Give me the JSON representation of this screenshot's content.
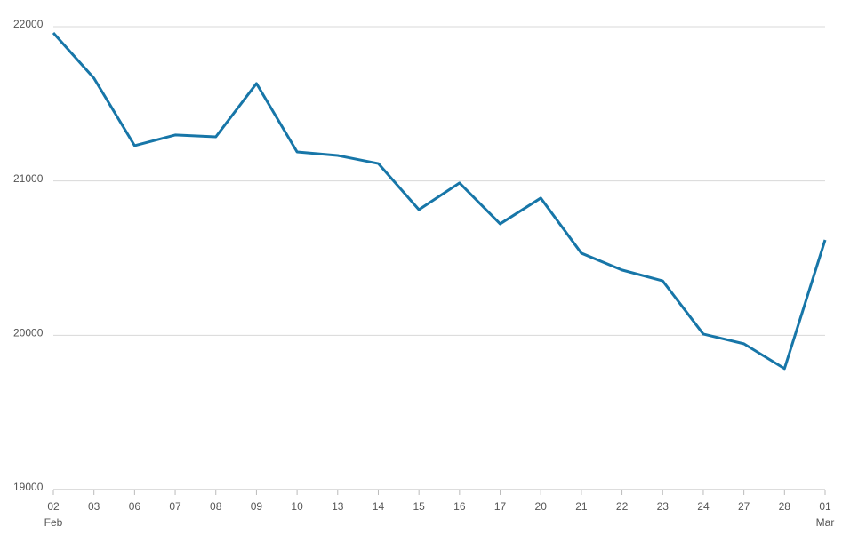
{
  "chart_data": {
    "type": "line",
    "categories": [
      "02",
      "03",
      "06",
      "07",
      "08",
      "09",
      "10",
      "13",
      "14",
      "15",
      "16",
      "17",
      "20",
      "21",
      "22",
      "23",
      "24",
      "27",
      "28",
      "01"
    ],
    "category_sublabels": [
      "Feb",
      null,
      null,
      null,
      null,
      null,
      null,
      null,
      null,
      null,
      null,
      null,
      null,
      null,
      null,
      null,
      null,
      null,
      null,
      "Mar"
    ],
    "series": [
      {
        "color": "#1776a8",
        "values": [
          21960,
          21666,
          21229,
          21298,
          21286,
          21632,
          21188,
          21165,
          21113,
          20814,
          20987,
          20722,
          20889,
          20532,
          20423,
          20353,
          20008,
          19945,
          19784,
          20618
        ]
      }
    ],
    "ylim": [
      19000,
      22000
    ],
    "yticks": [
      19000,
      20000,
      21000,
      22000
    ],
    "grid": true
  }
}
